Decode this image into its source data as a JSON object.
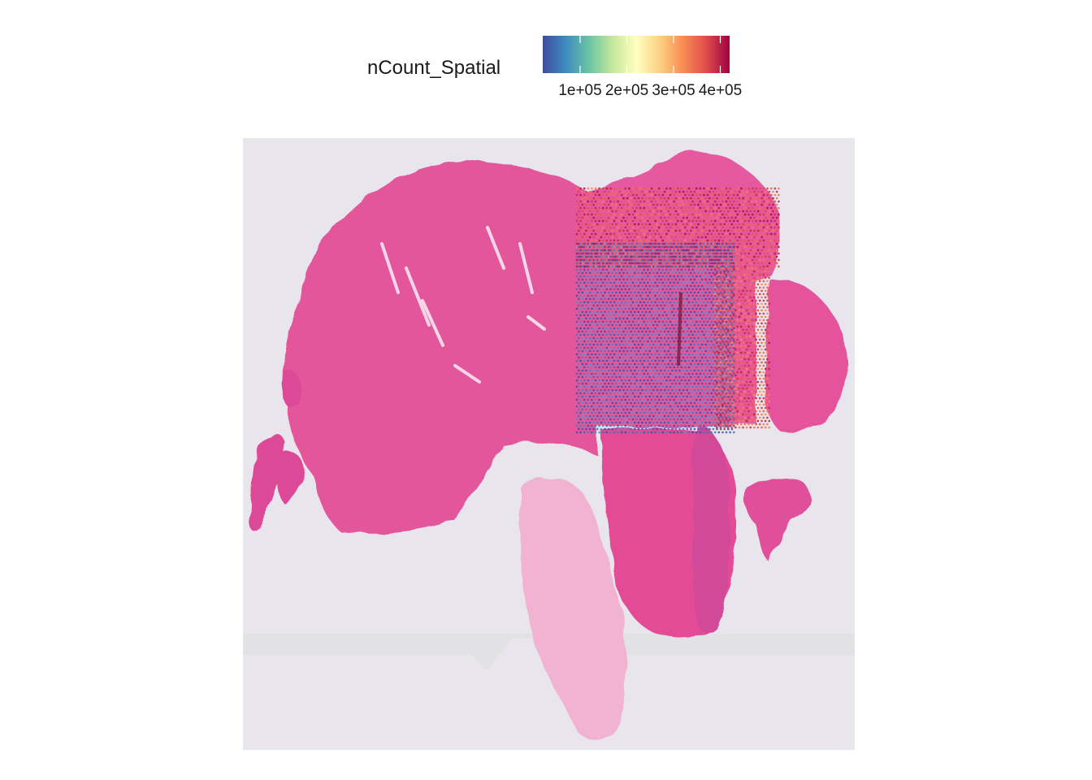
{
  "chart_data": {
    "type": "spatial_feature_plot",
    "feature": "nCount_Spatial",
    "legend": {
      "title": "nCount_Spatial",
      "palette": "Spectral (reversed)",
      "colors": [
        "#3e4c9f",
        "#3d8dbf",
        "#6cc5a4",
        "#c6e89b",
        "#ffffbf",
        "#fdd183",
        "#f88d52",
        "#df4c4b",
        "#9e0142"
      ],
      "tick_labels": [
        "1e+05",
        "2e+05",
        "3e+05",
        "4e+05"
      ],
      "tick_values": [
        100000,
        200000,
        300000,
        400000
      ],
      "range": [
        20000,
        420000
      ]
    },
    "background": {
      "description": "H&E stained tissue section",
      "tissue_color": "#e8559f",
      "slide_color": "#e8e6ec"
    },
    "regions": [
      {
        "name": "upper-right block",
        "x": [
          710,
          960
        ],
        "y": [
          232,
          330
        ],
        "level": 0.88
      },
      {
        "name": "center-left low block",
        "x": [
          710,
          905
        ],
        "y": [
          300,
          535
        ],
        "level": 0.05
      },
      {
        "name": "right high block",
        "x": [
          880,
          948
        ],
        "y": [
          330,
          530
        ],
        "level": 0.85
      }
    ]
  }
}
